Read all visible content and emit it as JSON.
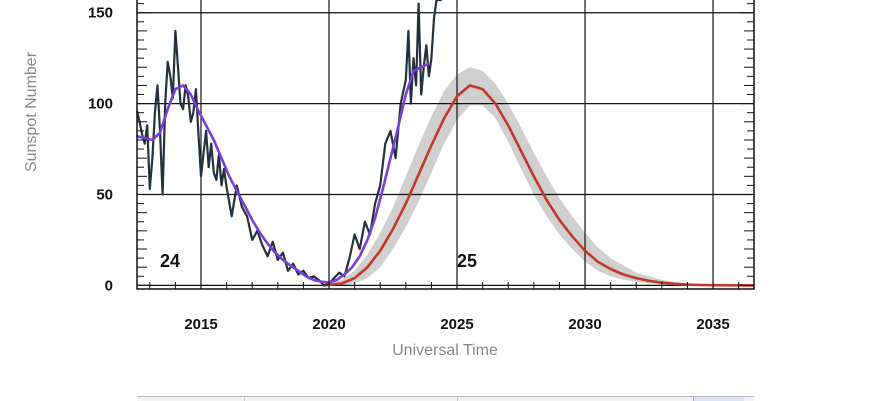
{
  "chart_data": {
    "type": "line",
    "xlabel": "Universal Time",
    "ylabel": "Sunspot Number",
    "xlim": [
      2012.5,
      2036.6
    ],
    "ylim": [
      -2,
      157
    ],
    "x_ticks": [
      2015,
      2020,
      2025,
      2030,
      2035
    ],
    "x_tick_labels": [
      "2015",
      "2020",
      "2025",
      "2030",
      "2035"
    ],
    "y_ticks": [
      0,
      50,
      100,
      150
    ],
    "y_tick_labels": [
      "0",
      "50",
      "100",
      "150"
    ],
    "grid": true,
    "annotations": [
      {
        "text": "24",
        "x": 2013.4,
        "y": 10
      },
      {
        "text": "25",
        "x": 2025.0,
        "y": 10
      }
    ],
    "series": [
      {
        "kind": "monthly",
        "color": "#23313f",
        "x": [
          2012.5,
          2012.6,
          2012.7,
          2012.8,
          2012.9,
          2013.0,
          2013.1,
          2013.2,
          2013.3,
          2013.4,
          2013.5,
          2013.6,
          2013.7,
          2013.8,
          2013.9,
          2014.0,
          2014.1,
          2014.2,
          2014.3,
          2014.4,
          2014.5,
          2014.6,
          2014.7,
          2014.8,
          2014.9,
          2015.0,
          2015.1,
          2015.2,
          2015.3,
          2015.4,
          2015.5,
          2015.6,
          2015.7,
          2015.8,
          2015.9,
          2016.0,
          2016.2,
          2016.4,
          2016.6,
          2016.8,
          2017.0,
          2017.2,
          2017.4,
          2017.6,
          2017.8,
          2018.0,
          2018.2,
          2018.4,
          2018.6,
          2018.8,
          2019.0,
          2019.2,
          2019.4,
          2019.6,
          2019.8,
          2020.0,
          2020.2,
          2020.4,
          2020.6,
          2020.8,
          2021.0,
          2021.2,
          2021.4,
          2021.6,
          2021.8,
          2022.0,
          2022.2,
          2022.4,
          2022.6,
          2022.8,
          2023.0,
          2023.1,
          2023.2,
          2023.3,
          2023.4,
          2023.5,
          2023.6,
          2023.7,
          2023.8,
          2023.9,
          2024.0,
          2024.1,
          2024.2,
          2024.3,
          2024.4
        ],
        "values": [
          96,
          90,
          83,
          78,
          88,
          53,
          70,
          95,
          110,
          85,
          50,
          100,
          123,
          115,
          103,
          140,
          120,
          100,
          97,
          110,
          104,
          90,
          95,
          108,
          84,
          60,
          73,
          85,
          65,
          78,
          62,
          58,
          72,
          55,
          64,
          54,
          38,
          55,
          43,
          38,
          25,
          30,
          22,
          16,
          24,
          14,
          18,
          8,
          12,
          6,
          8,
          4,
          5,
          3,
          0,
          1,
          4,
          7,
          5,
          15,
          28,
          20,
          35,
          28,
          45,
          55,
          78,
          85,
          70,
          100,
          113,
          140,
          100,
          125,
          110,
          155,
          105,
          120,
          132,
          115,
          125,
          147,
          160,
          175,
          190
        ]
      },
      {
        "kind": "smoothed",
        "color": "#7a3fd6",
        "x": [
          2012.5,
          2012.8,
          2013.1,
          2013.4,
          2013.7,
          2014.0,
          2014.3,
          2014.6,
          2014.9,
          2015.2,
          2015.5,
          2015.8,
          2016.1,
          2016.4,
          2016.7,
          2017.0,
          2017.3,
          2017.6,
          2017.9,
          2018.2,
          2018.5,
          2018.8,
          2019.1,
          2019.4,
          2019.7,
          2020.0,
          2020.3,
          2020.6,
          2020.9,
          2021.2,
          2021.5,
          2021.8,
          2022.1,
          2022.4,
          2022.7,
          2023.0,
          2023.3,
          2023.6,
          2023.9
        ],
        "values": [
          82,
          81,
          80,
          84,
          97,
          108,
          110,
          105,
          96,
          88,
          80,
          70,
          60,
          52,
          44,
          36,
          29,
          23,
          18,
          14,
          11,
          8,
          5,
          3,
          2,
          1.5,
          3,
          6,
          10,
          16,
          25,
          37,
          53,
          70,
          87,
          105,
          118,
          120,
          122
        ]
      },
      {
        "kind": "predicted",
        "color": "#c0392b",
        "x": [
          2019.8,
          2020.5,
          2021.0,
          2021.5,
          2022.0,
          2022.5,
          2023.0,
          2023.5,
          2024.0,
          2024.5,
          2025.0,
          2025.5,
          2026.0,
          2026.5,
          2027.0,
          2027.5,
          2028.0,
          2028.5,
          2029.0,
          2029.5,
          2030.0,
          2030.5,
          2031.0,
          2031.5,
          2032.0,
          2032.5,
          2033.0,
          2033.5,
          2034.0,
          2034.5,
          2035.0,
          2035.5,
          2036.0,
          2036.6
        ],
        "values": [
          0,
          1,
          4,
          10,
          19,
          31,
          45,
          61,
          77,
          92,
          104,
          110,
          108,
          100,
          88,
          74,
          60,
          47,
          36,
          27,
          19,
          13,
          9,
          6,
          4,
          2.5,
          1.5,
          0.8,
          0.4,
          0.2,
          0.1,
          0.05,
          0.02,
          0
        ]
      },
      {
        "kind": "uncertainty-band",
        "color": "#cfcfcf",
        "x": [
          2019.8,
          2020.5,
          2021.0,
          2021.5,
          2022.0,
          2022.5,
          2023.0,
          2023.5,
          2024.0,
          2024.5,
          2025.0,
          2025.5,
          2026.0,
          2026.5,
          2027.0,
          2027.5,
          2028.0,
          2028.5,
          2029.0,
          2029.5,
          2030.0,
          2030.5,
          2031.0,
          2031.5,
          2032.0,
          2032.5,
          2033.0,
          2033.5,
          2034.0,
          2034.5,
          2035.0,
          2035.5,
          2036.0,
          2036.6
        ],
        "upper": [
          0.5,
          3,
          8,
          17,
          29,
          43,
          60,
          77,
          93,
          107,
          116,
          120,
          118,
          111,
          100,
          87,
          73,
          60,
          48,
          38,
          29,
          21,
          15,
          11,
          7,
          5,
          3,
          2,
          1.2,
          0.6,
          0.3,
          0.15,
          0.05,
          0
        ],
        "lower": [
          0,
          0,
          1,
          4,
          10,
          20,
          32,
          46,
          62,
          78,
          91,
          99,
          99,
          92,
          79,
          64,
          50,
          38,
          28,
          20,
          13,
          8,
          5,
          3,
          2,
          1,
          0.5,
          0.2,
          0.1,
          0,
          0,
          0,
          0,
          0
        ]
      }
    ]
  }
}
